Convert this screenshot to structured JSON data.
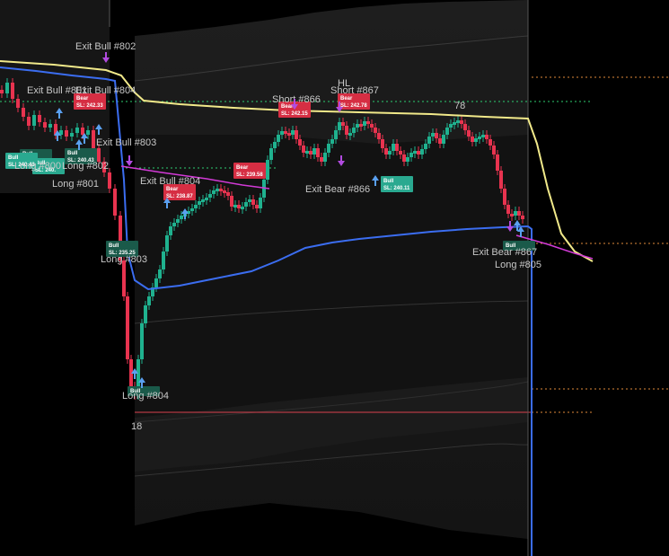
{
  "colors": {
    "background": "#000000",
    "bull_candle": "#1fb28f",
    "bear_candle": "#e8334f",
    "yellow_band": "#f1e98a",
    "blue_band": "#3b6df0",
    "magenta_line": "#d23ad6",
    "envelope_fill": "#1a1a1a",
    "envelope_line": "#4a4a4a",
    "red_level": "#d9424f",
    "orange_dotted": "#e08a3a",
    "green_dotted": "#2ecc71",
    "divider": "#555555",
    "label_text": "#c8c8c8",
    "bull_tag": "#1a5a4a",
    "bear_tag": "#d62e43",
    "bull_tag_teal": "#2aa990"
  },
  "chart_data": {
    "type": "candlestick",
    "title": "",
    "xlabel": "",
    "ylabel": "",
    "grid": false,
    "annotations": [
      {
        "text": "Exit Bull #802",
        "kind": "exit"
      },
      {
        "text": "Exit Bull #801",
        "kind": "exit"
      },
      {
        "text": "Exit Bull #804",
        "kind": "exit"
      },
      {
        "text": "Exit Bull #803",
        "kind": "exit"
      },
      {
        "text": "Exit Bull #804",
        "kind": "exit"
      },
      {
        "text": "Long #800",
        "kind": "entry"
      },
      {
        "text": "Long #802",
        "kind": "entry"
      },
      {
        "text": "Long #801",
        "kind": "entry"
      },
      {
        "text": "Long #803",
        "kind": "entry"
      },
      {
        "text": "Long #804",
        "kind": "entry"
      },
      {
        "text": "Short #866",
        "kind": "entry"
      },
      {
        "text": "Short #867",
        "kind": "entry"
      },
      {
        "text": "Exit Bear #866",
        "kind": "exit"
      },
      {
        "text": "Exit Bear #867",
        "kind": "exit"
      },
      {
        "text": "Long #805",
        "kind": "entry"
      },
      {
        "text": "HL",
        "kind": "marker"
      },
      {
        "text": "78",
        "kind": "marker"
      },
      {
        "text": "18",
        "kind": "marker"
      }
    ],
    "tags": [
      {
        "title": "Bear",
        "sl": "SL: 242.33"
      },
      {
        "title": "Bull",
        "sl": "SL: 241.16"
      },
      {
        "title": "Bull",
        "sl": "SL: 240."
      },
      {
        "title": "Bull",
        "sl": "SL: 240.43"
      },
      {
        "title": "Bull",
        "sl": "SL: 240.43"
      },
      {
        "title": "Bear",
        "sl": "SL: 239.58"
      },
      {
        "title": "Bear",
        "sl": "SL: 238.87"
      },
      {
        "title": "Bear",
        "sl": "SL: 242.15"
      },
      {
        "title": "Bear",
        "sl": "SL: 242.78"
      },
      {
        "title": "Bull",
        "sl": "SL: 240.11"
      },
      {
        "title": "Bull",
        "sl": "SL: 235.25"
      },
      {
        "title": "Bull",
        "sl": ""
      },
      {
        "title": "Bull",
        "sl": ""
      }
    ],
    "series": [
      {
        "kind": "price_candles"
      },
      {
        "kind": "upper_band_line"
      },
      {
        "kind": "vwap_line"
      },
      {
        "kind": "trend_line"
      }
    ]
  }
}
